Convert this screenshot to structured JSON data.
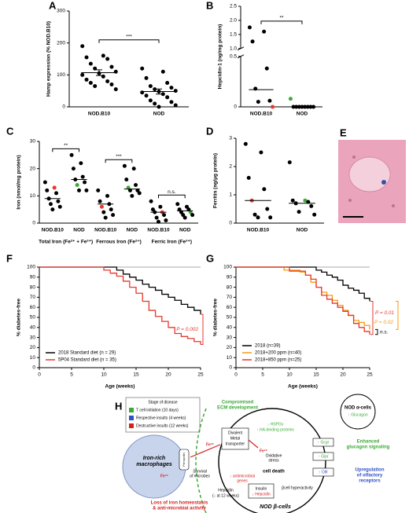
{
  "chart_data": [
    {
      "type": "dot",
      "label": "A",
      "y_label": "Hamp expression (% NOD.B10)",
      "color": "#000",
      "ylim": [
        0,
        300
      ],
      "yticks": [
        0,
        100,
        200,
        300
      ],
      "groups": [
        {
          "categories": [
            "NOD.B10",
            "NOD"
          ],
          "values": [
            [
              190,
              160,
              155,
              150,
              135,
              125,
              120,
              110,
              105,
              100,
              95,
              85,
              80,
              75,
              70,
              65,
              55
            ],
            [
              120,
              110,
              90,
              75,
              65,
              60,
              55,
              50,
              48,
              45,
              40,
              35,
              30,
              20,
              15,
              10,
              5,
              0
            ]
          ],
          "center": [
            107,
            48
          ],
          "error": [
            9,
            8
          ],
          "significance": "***"
        }
      ]
    },
    {
      "type": "dot",
      "label": "B",
      "y_label": "Hepcidin-1 (ng/mg protein)",
      "color": "#000",
      "ylim": [
        0,
        2.5
      ],
      "break": [
        0.5,
        1
      ],
      "yticks": [
        0,
        0.5,
        {
          "value": 1,
          "label": "1.0"
        },
        1.5,
        {
          "value": 2,
          "label": "2.0"
        },
        2.5
      ],
      "groups": [
        {
          "categories": [
            "NOD.B10",
            "NOD"
          ],
          "values": [
            [
              1.75,
              1.6,
              1.25,
              0.38,
              0.18,
              0.06,
              0.05,
              0
            ],
            [
              0.08,
              0,
              0,
              0,
              0,
              0,
              0,
              0,
              0
            ]
          ],
          "colors": [
            [
              "#000",
              "#000",
              "#000",
              "#000",
              "#000",
              "#000",
              "#000",
              "#e8372c"
            ],
            [
              "#3aaa35",
              "#000",
              "#000",
              "#000",
              "#000",
              "#000",
              "#000",
              "#000",
              "#000"
            ]
          ],
          "center": [
            0.17,
            0
          ],
          "significance": "**"
        }
      ]
    },
    {
      "type": "dot",
      "label": "C",
      "y_label": "Iron (nmol/mg protein)",
      "color": "#000",
      "ylim": [
        0,
        30
      ],
      "yticks": [
        0,
        10,
        20,
        30
      ],
      "groups": [
        {
          "name": "Total Iron (Fe²⁺ + Fe³⁺)",
          "categories": [
            "NOD.B10",
            "NOD"
          ],
          "values": [
            [
              15,
              13,
              12,
              11,
              9,
              8,
              7,
              6,
              5
            ],
            [
              25,
              22,
              20,
              17,
              16,
              15,
              14,
              12,
              12
            ]
          ],
          "colors": [
            [
              "#000",
              "#e8372c",
              "#000",
              "#000",
              "#000",
              "#000",
              "#000",
              "#000",
              "#000"
            ],
            [
              "#000",
              "#000",
              "#000",
              "#000",
              "#000",
              "#000",
              "#3aaa35",
              "#000",
              "#000"
            ]
          ],
          "center": [
            9,
            16
          ],
          "significance": "**"
        },
        {
          "name": "Ferrous Iron (Fe²⁺)",
          "categories": [
            "NOD.B10",
            "NOD"
          ],
          "values": [
            [
              12,
              10,
              8,
              7,
              6,
              5,
              4,
              3,
              2
            ],
            [
              21,
              20,
              16,
              14,
              13,
              12,
              12,
              11,
              10
            ]
          ],
          "colors": [
            [
              "#000",
              "#000",
              "#000",
              "#000",
              "#e8372c",
              "#000",
              "#000",
              "#000",
              "#000"
            ],
            [
              "#000",
              "#000",
              "#000",
              "#000",
              "#3aaa35",
              "#000",
              "#000",
              "#000",
              "#000"
            ]
          ],
          "center": [
            7,
            12.5
          ],
          "significance": "***"
        },
        {
          "name": "Ferric Iron (Fe³⁺)",
          "categories": [
            "NOD.B10",
            "NOD"
          ],
          "values": [
            [
              8,
              6,
              5,
              4,
              4,
              3,
              2,
              1,
              0.5
            ],
            [
              7,
              6,
              5,
              5,
              4,
              4,
              3,
              3,
              2
            ]
          ],
          "colors": [
            [
              "#000",
              "#000",
              "#000",
              "#e8372c",
              "#000",
              "#000",
              "#000",
              "#000",
              "#000"
            ],
            [
              "#000",
              "#000",
              "#000",
              "#000",
              "#000",
              "#3aaa35",
              "#000",
              "#000",
              "#000"
            ]
          ],
          "center": [
            4,
            4.5
          ],
          "significance": "n.s."
        }
      ]
    },
    {
      "type": "dot",
      "label": "D",
      "y_label": "Ferritin (ng/μg protein)",
      "color": "#000",
      "ylim": [
        0,
        3
      ],
      "yticks": [
        0,
        1,
        2,
        3
      ],
      "groups": [
        {
          "categories": [
            "NOD.B10",
            "NOD"
          ],
          "values": [
            [
              2.8,
              2.5,
              1.6,
              1.2,
              0.8,
              0.5,
              0.3,
              0.2,
              0.2
            ],
            [
              2.15,
              0.8,
              0.8,
              0.75,
              0.7,
              0.6,
              0.4,
              0.3
            ]
          ],
          "colors": [
            [
              "#000",
              "#000",
              "#000",
              "#000",
              "#e8372c",
              "#000",
              "#000",
              "#000",
              "#000"
            ],
            [
              "#000",
              "#3aaa35",
              "#000",
              "#000",
              "#000",
              "#000",
              "#000",
              "#000"
            ]
          ],
          "center": [
            0.8,
            0.7
          ]
        }
      ]
    },
    {
      "type": "step",
      "label": "F",
      "y_label": "% diabetes-free",
      "x_label": "Age (weeks)",
      "xlim": [
        0,
        25
      ],
      "xticks": [
        0,
        5,
        10,
        15,
        20,
        25
      ],
      "ylim": [
        0,
        100
      ],
      "yticks": [
        0,
        10,
        20,
        30,
        40,
        50,
        60,
        70,
        80,
        90,
        100
      ],
      "legend_loc": "lower left",
      "series": [
        {
          "name": "2018 Standard diet (n = 29)",
          "color": "#000",
          "x": [
            0,
            12,
            13,
            14,
            15,
            16,
            17,
            18,
            19,
            20,
            21,
            22,
            23,
            24,
            25
          ],
          "values": [
            100,
            97,
            93,
            90,
            87,
            83,
            80,
            77,
            73,
            70,
            67,
            63,
            60,
            57,
            53
          ]
        },
        {
          "name": "5P04 Standard diet (n = 35)",
          "color": "#e8372c",
          "x": [
            0,
            10,
            11,
            12,
            13,
            14,
            15,
            16,
            17,
            18,
            19,
            20,
            21,
            22,
            23,
            24,
            25
          ],
          "values": [
            100,
            97,
            94,
            91,
            86,
            80,
            74,
            66,
            57,
            51,
            46,
            40,
            34,
            31,
            29,
            26,
            23
          ]
        }
      ],
      "annotations": [
        {
          "text": "P = 0.002",
          "color": "#e8372c",
          "between": [
            0,
            1
          ]
        }
      ]
    },
    {
      "type": "step",
      "label": "G",
      "y_label": "% diabetes-free",
      "x_label": "Age (weeks)",
      "xlim": [
        0,
        25
      ],
      "xticks": [
        0,
        5,
        10,
        15,
        20,
        25
      ],
      "ylim": [
        0,
        100
      ],
      "yticks": [
        0,
        10,
        20,
        30,
        40,
        50,
        60,
        70,
        80,
        90,
        100
      ],
      "legend_loc": "lower left",
      "series": [
        {
          "name": "2018  (n=39)",
          "color": "#000",
          "x": [
            0,
            15,
            16,
            17,
            18,
            19,
            20,
            21,
            22,
            23,
            24,
            25
          ],
          "values": [
            100,
            97,
            95,
            92,
            90,
            87,
            82,
            79,
            77,
            74,
            69,
            66
          ]
        },
        {
          "name": "2018+200 ppm  (n=40)",
          "color": "#f39c12",
          "x": [
            0,
            9,
            12,
            13,
            14,
            15,
            16,
            17,
            18,
            19,
            20,
            21,
            22,
            23,
            24,
            25
          ],
          "values": [
            100,
            97,
            95,
            92,
            85,
            80,
            75,
            72,
            67,
            62,
            57,
            52,
            47,
            45,
            42,
            38
          ]
        },
        {
          "name": "2018+850 ppm  (n=25)",
          "color": "#e8372c",
          "x": [
            0,
            10,
            13,
            14,
            15,
            16,
            17,
            18,
            19,
            20,
            21,
            22,
            23,
            24,
            25
          ],
          "values": [
            100,
            96,
            92,
            88,
            80,
            72,
            68,
            64,
            60,
            56,
            52,
            44,
            40,
            36,
            33
          ]
        }
      ],
      "annotations": [
        {
          "text": "P = 0.01",
          "color": "#e8372c",
          "between": [
            0,
            2
          ]
        },
        {
          "text": "P = 0.02",
          "color": "#f39c12",
          "between": [
            0,
            1
          ]
        },
        {
          "text": "n.s.",
          "color": "#000",
          "between": [
            1,
            2
          ]
        }
      ]
    }
  ],
  "image_panel": {
    "label": "E"
  },
  "diagram": {
    "label": "H",
    "legend": {
      "title": "Stage of disease",
      "items": [
        "T cell initiation (10 days)",
        "Respective insults (4 weeks)",
        "Destructive insults (12 weeks)"
      ]
    },
    "macrophage": [
      "Iron-rich",
      "macrophages"
    ],
    "beta_cell": "NOD β-cells",
    "alpha_cell": [
      "NOD α-cells",
      "↑ Glucagon"
    ],
    "ecm": [
      "Compromised",
      "ECM development"
    ],
    "ecm_genes": [
      "↓ HSPGs",
      "↑ HA-binding proteins"
    ],
    "dmt": [
      "Divalent",
      "Metal",
      "transporter"
    ],
    "ferroportin": "Ferroportin",
    "fe2": "Fe²⁺",
    "fe3": "Fe³⁺",
    "microbes": [
      "Survival",
      "of microbes"
    ],
    "antimicrobial": [
      "↓ antimicrobial",
      "genes"
    ],
    "oxidative": [
      "Oxidative",
      "stress"
    ],
    "cell_death": "cell death",
    "hyperactivity": "βcell hyperactivity",
    "insulin": [
      "Insulin",
      "↓ Hepcidin"
    ],
    "hepcidin": [
      "Hepcidin",
      "(↓ at 12 weeks)"
    ],
    "receptors": [
      "↑ Gcgr",
      "↑ Gipr",
      "↑ Olfr"
    ],
    "glucagon_signal": [
      "Enhanced",
      "glucagon signaling"
    ],
    "olfactory": [
      "Upregulation",
      "of olfactory",
      "receptors"
    ],
    "loss": [
      "Loss of iron homeostasis",
      "& anti-microbial activity"
    ]
  }
}
